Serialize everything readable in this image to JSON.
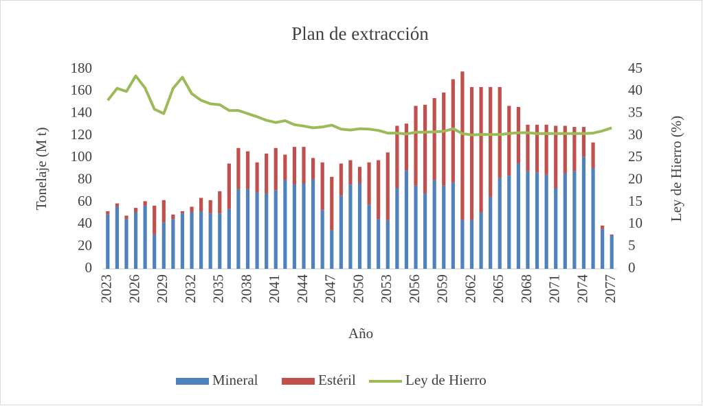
{
  "chart_data": {
    "type": "bar",
    "stacked": true,
    "title": "Plan de extracción",
    "x_label": "Año",
    "y_label": "Tonelaje (M t)",
    "y2_label": "Ley de Hierro (%)",
    "categories": [
      2023,
      null,
      null,
      2026,
      null,
      null,
      2029,
      null,
      null,
      2032,
      null,
      null,
      2035,
      null,
      null,
      2038,
      null,
      null,
      2041,
      null,
      null,
      2044,
      null,
      null,
      2047,
      null,
      null,
      2050,
      null,
      null,
      2053,
      null,
      null,
      2056,
      null,
      null,
      2059,
      null,
      null,
      2062,
      null,
      null,
      2065,
      null,
      null,
      2068,
      null,
      null,
      2071,
      null,
      null,
      2074,
      null,
      null,
      2077
    ],
    "series": [
      {
        "name": "Mineral",
        "color": "#4f81bd",
        "type": "bar",
        "values": [
          49,
          56,
          45,
          51,
          57,
          31,
          42,
          45,
          50,
          51,
          52,
          50,
          50,
          54,
          72,
          72,
          69,
          68,
          71,
          80,
          76,
          77,
          81,
          53,
          35,
          66,
          76,
          77,
          58,
          45,
          44,
          73,
          89,
          75,
          68,
          80,
          75,
          78,
          44,
          44,
          51,
          65,
          82,
          84,
          95,
          88,
          87,
          85,
          73,
          86,
          88,
          101,
          91,
          36,
          30
        ]
      },
      {
        "name": "Estéril",
        "color": "#c0504d",
        "type": "bar",
        "values": [
          3,
          3,
          3,
          4,
          4,
          26,
          20,
          4,
          2,
          5,
          12,
          12,
          20,
          41,
          37,
          34,
          27,
          36,
          38,
          23,
          34,
          33,
          19,
          43,
          48,
          29,
          22,
          15,
          38,
          53,
          61,
          56,
          42,
          72,
          80,
          74,
          84,
          93,
          134,
          120,
          113,
          99,
          82,
          63,
          51,
          42,
          43,
          45,
          56,
          43,
          40,
          27,
          23,
          3,
          1
        ]
      },
      {
        "name": "Ley de Hierro",
        "color": "#9bbb59",
        "type": "line",
        "axis": "y2",
        "values": [
          38,
          40.7,
          40,
          43.5,
          40.8,
          36,
          35,
          40.7,
          43.2,
          39.5,
          38,
          37.2,
          37,
          35.7,
          35.7,
          35,
          34.3,
          33.5,
          33,
          33.4,
          32.5,
          32.2,
          31.8,
          32,
          32.4,
          31.5,
          31.3,
          31.6,
          31.5,
          31.2,
          30.6,
          30.6,
          30.4,
          30.8,
          30.8,
          30.9,
          31,
          31.6,
          30.5,
          30.2,
          30.3,
          30.3,
          30.3,
          30.5,
          30.7,
          30.7,
          30.5,
          30.5,
          30.5,
          30.5,
          30.5,
          30.5,
          30.6,
          31.1,
          31.8
        ]
      }
    ],
    "ylim": [
      0,
      180
    ],
    "yticks": [
      0,
      20,
      40,
      60,
      80,
      100,
      120,
      140,
      160,
      180
    ],
    "y2lim": [
      0,
      45
    ],
    "y2ticks": [
      0,
      5,
      10,
      15,
      20,
      25,
      30,
      35,
      40,
      45
    ],
    "grid": false,
    "legend": "bottom"
  }
}
